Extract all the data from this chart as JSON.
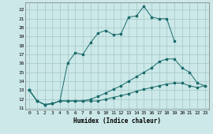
{
  "xlabel": "Humidex (Indice chaleur)",
  "ylabel": "",
  "background_color": "#cce8e8",
  "grid_color": "#aacccc",
  "line_color": "#1a6b6b",
  "xlim": [
    -0.5,
    23.5
  ],
  "ylim": [
    10.8,
    22.8
  ],
  "yticks": [
    11,
    12,
    13,
    14,
    15,
    16,
    17,
    18,
    19,
    20,
    21,
    22
  ],
  "xticks": [
    0,
    1,
    2,
    3,
    4,
    5,
    6,
    7,
    8,
    9,
    10,
    11,
    12,
    13,
    14,
    15,
    16,
    17,
    18,
    19,
    20,
    21,
    22,
    23
  ],
  "series": [
    {
      "x": [
        0,
        1,
        2,
        3,
        4,
        5,
        6,
        7,
        8,
        9,
        10,
        11,
        12,
        13,
        14,
        15,
        16,
        17,
        18,
        19
      ],
      "y": [
        13.0,
        11.8,
        11.4,
        11.5,
        11.8,
        16.0,
        17.2,
        17.0,
        18.3,
        19.4,
        19.7,
        19.2,
        19.3,
        21.2,
        21.3,
        22.4,
        21.2,
        21.0,
        21.0,
        18.5
      ]
    },
    {
      "x": [
        0,
        1,
        2,
        3,
        4,
        5,
        6,
        7,
        8,
        9,
        10,
        11,
        12,
        13,
        14,
        15,
        16,
        17,
        18,
        19,
        20,
        21,
        22,
        23
      ],
      "y": [
        13.0,
        11.8,
        11.4,
        11.5,
        11.8,
        11.8,
        11.8,
        11.8,
        12.0,
        12.3,
        12.7,
        13.1,
        13.5,
        14.0,
        14.5,
        15.0,
        15.5,
        16.2,
        16.5,
        16.5,
        15.5,
        15.0,
        13.8,
        13.5
      ]
    },
    {
      "x": [
        0,
        1,
        2,
        3,
        4,
        5,
        6,
        7,
        8,
        9,
        10,
        11,
        12,
        13,
        14,
        15,
        16,
        17,
        18,
        19,
        20,
        21,
        22,
        23
      ],
      "y": [
        13.0,
        11.8,
        11.4,
        11.5,
        11.8,
        11.8,
        11.8,
        11.8,
        11.8,
        11.8,
        12.0,
        12.2,
        12.4,
        12.6,
        12.9,
        13.1,
        13.3,
        13.5,
        13.7,
        13.8,
        13.8,
        13.5,
        13.3,
        13.5
      ]
    }
  ]
}
